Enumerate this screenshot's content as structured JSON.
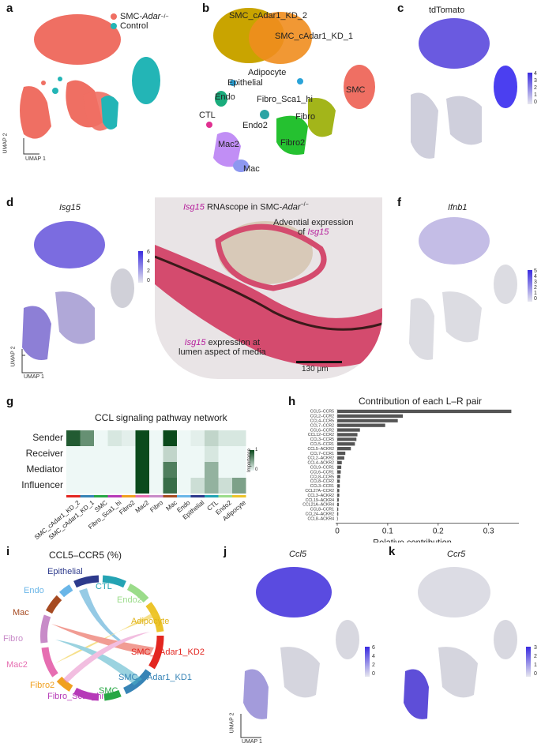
{
  "panels": {
    "a": {
      "label": "a",
      "legend": [
        {
          "text": "SMC-",
          "italic": "Adar",
          "sup": "−/−",
          "color": "#ef6f63"
        },
        {
          "text": "Control",
          "color": "#23b5b6"
        }
      ],
      "axis_x": "UMAP 1",
      "axis_y": "UMAP 2"
    },
    "b": {
      "label": "b",
      "clusters": [
        "SMC_cAdar1_KD_2",
        "SMC_cAdar1_KD_1",
        "Adipocyte",
        "Epithelial",
        "Endo",
        "Fibro_Sca1_hi",
        "SMC",
        "CTL",
        "Fibro",
        "Endo2",
        "Mac2",
        "Fibro2",
        "Mac"
      ]
    },
    "c": {
      "label": "c",
      "title": "tdTomato",
      "ticks": [
        "4",
        "3",
        "2",
        "1",
        "0"
      ]
    },
    "d": {
      "label": "d",
      "title": "Isg15",
      "ticks": [
        "6",
        "4",
        "2",
        "0"
      ],
      "axis_x": "UMAP 1",
      "axis_y": "UMAP 2"
    },
    "e": {
      "label": "e",
      "title_italic": "Isg15",
      "title_rest": " RNAscope in SMC-",
      "title_italic2": "Adar",
      "title_sup": "−/−",
      "ann1_line1": "Advential expression",
      "ann1_line2": "of ",
      "ann1_italic": "Isg15",
      "ann2_italic": "Isg15",
      "ann2_line1": " expression at",
      "ann2_line2": "lumen aspect of media",
      "scalebar": "130 μm"
    },
    "f": {
      "label": "f",
      "title": "Ifnb1",
      "ticks": [
        "5",
        "4",
        "3",
        "2",
        "1",
        "0"
      ]
    },
    "g": {
      "label": "g",
      "title": "CCL signaling pathway network",
      "rows": [
        "Sender",
        "Receiver",
        "Mediator",
        "Influencer"
      ],
      "cols": [
        "SMC_cAdar1_KD_2",
        "SMC_cAdar1_KD_1",
        "SMC",
        "Fibro_Sca1_hi",
        "Fibro2",
        "Mac2",
        "Fibro",
        "Mac",
        "Endo",
        "Epithelial",
        "CTL",
        "Endo2",
        "Adipocyte"
      ],
      "legend_title": "Importance",
      "legend_max": "1",
      "legend_min": "0"
    },
    "h": {
      "label": "h"
    },
    "i": {
      "label": "i",
      "title": "CCL5–CCR5 (%)",
      "sectors": [
        "Epithelial",
        "CTL",
        "Endo",
        "Endo2",
        "Mac",
        "Adipocyte",
        "Fibro",
        "SMC_cAdar1_KD2",
        "Mac2",
        "SMC_cAdar1_KD1",
        "Fibro2",
        "SMC",
        "Fibro_Sca1_hi"
      ]
    },
    "j": {
      "label": "j",
      "title": "Ccl5",
      "ticks": [
        "6",
        "4",
        "2",
        "0"
      ],
      "axis_x": "UMAP 1",
      "axis_y": "UMAP 2"
    },
    "k": {
      "label": "k",
      "title": "Ccr5",
      "ticks": [
        "3",
        "2",
        "1",
        "0"
      ]
    }
  },
  "heatmap": {
    "values": [
      [
        0.9,
        0.6,
        0,
        0.1,
        0.05,
        1,
        0,
        1,
        0,
        0.05,
        0.2,
        0.1,
        0.1
      ],
      [
        0,
        0,
        0,
        0,
        0,
        1,
        0,
        0.2,
        0,
        0,
        0.1,
        0,
        0
      ],
      [
        0,
        0,
        0,
        0,
        0,
        1,
        0,
        0.7,
        0,
        0,
        0.4,
        0,
        0
      ],
      [
        0,
        0,
        0,
        0,
        0,
        1,
        0,
        0.8,
        0,
        0.15,
        0.4,
        0.15,
        0.5
      ]
    ],
    "colors": {
      "low": "#eef8f6",
      "high": "#0b4a1c"
    }
  },
  "chart_data": {
    "type": "bar",
    "title": "Contribution of each L–R pair",
    "xlabel": "Relative contribution",
    "ylabel": "",
    "xlim": [
      0,
      0.36
    ],
    "xticks": [
      "0",
      "0.1",
      "0.2",
      "0.3"
    ],
    "categories": [
      "CCL5–CCR5",
      "CCL2–CCR2",
      "CCL4–CCR5",
      "CCL7–CCR2",
      "CCL6–CCR2",
      "CCL12–CCR2",
      "CCL3–CCR5",
      "CCL5–CCR1",
      "CCL5–ACKR2",
      "CCL7–CCR1",
      "CCL2–ACKR2",
      "CCL4–ACKR2",
      "CCL9–CCR1",
      "CCL6–CCR1",
      "CCL8–CCR5",
      "CCL8–CCR2",
      "CCL3–CCR1",
      "CCL27A–CCR2",
      "CCL3–ACKR2",
      "CCL19–ACKR4",
      "CCL21A–ACKR4",
      "CCL8–CCR1",
      "CCL24–ACKR2",
      "CCL8–ACKR4"
    ],
    "values": [
      0.345,
      0.13,
      0.12,
      0.095,
      0.045,
      0.04,
      0.038,
      0.035,
      0.027,
      0.016,
      0.014,
      0.009,
      0.008,
      0.007,
      0.006,
      0.005,
      0.005,
      0.004,
      0.004,
      0.003,
      0.003,
      0.002,
      0.002,
      0.001
    ]
  }
}
